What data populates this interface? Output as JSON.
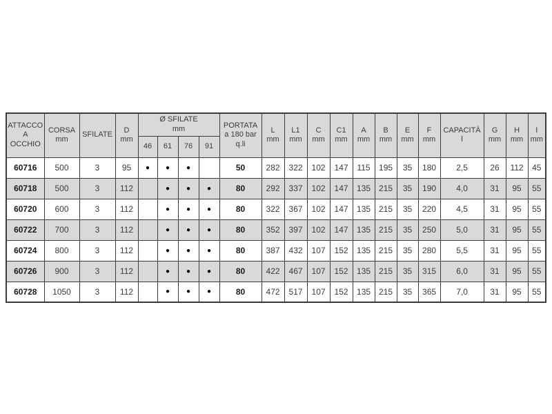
{
  "page": {
    "background": "#ffffff"
  },
  "colors": {
    "header_bg": "#d9d9d9",
    "row_bg": "#ffffff",
    "row_alt_bg": "#d9d9d9",
    "border": "#3a3a3a",
    "text": "#3a3a3a",
    "text_bold": "#1a1a1a",
    "dot": "#000000"
  },
  "table": {
    "dot_glyph": "●",
    "header": {
      "attacco": "ATTACCO\nA\nOCCHIO",
      "corsa": "CORSA\nmm",
      "sfilate": "SFILATE",
      "d": "D\nmm",
      "sfilate_group": "Ø SFILATE\nmm",
      "sfilate_sizes": [
        "46",
        "61",
        "76",
        "91"
      ],
      "portata": "PORTATA\na 180 bar\nq.li",
      "l": "L\nmm",
      "l1": "L1\nmm",
      "c": "C\nmm",
      "c1": "C1\nmm",
      "a": "A\nmm",
      "b": "B\nmm",
      "e": "E\nmm",
      "f": "F\nmm",
      "capacita": "CAPACITÀ\nl",
      "g": "G\nmm",
      "h": "H\nmm",
      "i": "I\nmm"
    },
    "rows": [
      {
        "code": "60716",
        "corsa": "500",
        "sfilate": "3",
        "d": "95",
        "dots": [
          true,
          true,
          true,
          false
        ],
        "portata": "50",
        "l": "282",
        "l1": "322",
        "c": "102",
        "c1": "147",
        "a": "115",
        "b": "195",
        "e": "35",
        "f": "180",
        "capacita": "2,5",
        "g": "26",
        "h": "112",
        "i": "45"
      },
      {
        "code": "60718",
        "corsa": "500",
        "sfilate": "3",
        "d": "112",
        "dots": [
          false,
          true,
          true,
          true
        ],
        "portata": "80",
        "l": "292",
        "l1": "337",
        "c": "102",
        "c1": "147",
        "a": "135",
        "b": "215",
        "e": "35",
        "f": "190",
        "capacita": "4,0",
        "g": "31",
        "h": "95",
        "i": "55"
      },
      {
        "code": "60720",
        "corsa": "600",
        "sfilate": "3",
        "d": "112",
        "dots": [
          false,
          true,
          true,
          true
        ],
        "portata": "80",
        "l": "322",
        "l1": "367",
        "c": "102",
        "c1": "147",
        "a": "135",
        "b": "215",
        "e": "35",
        "f": "220",
        "capacita": "4,5",
        "g": "31",
        "h": "95",
        "i": "55"
      },
      {
        "code": "60722",
        "corsa": "700",
        "sfilate": "3",
        "d": "112",
        "dots": [
          false,
          true,
          true,
          true
        ],
        "portata": "80",
        "l": "352",
        "l1": "397",
        "c": "102",
        "c1": "147",
        "a": "135",
        "b": "215",
        "e": "35",
        "f": "250",
        "capacita": "5,0",
        "g": "31",
        "h": "95",
        "i": "55"
      },
      {
        "code": "60724",
        "corsa": "800",
        "sfilate": "3",
        "d": "112",
        "dots": [
          false,
          true,
          true,
          true
        ],
        "portata": "80",
        "l": "387",
        "l1": "432",
        "c": "107",
        "c1": "152",
        "a": "135",
        "b": "215",
        "e": "35",
        "f": "280",
        "capacita": "5,5",
        "g": "31",
        "h": "95",
        "i": "55"
      },
      {
        "code": "60726",
        "corsa": "900",
        "sfilate": "3",
        "d": "112",
        "dots": [
          false,
          true,
          true,
          true
        ],
        "portata": "80",
        "l": "422",
        "l1": "467",
        "c": "107",
        "c1": "152",
        "a": "135",
        "b": "215",
        "e": "35",
        "f": "315",
        "capacita": "6,0",
        "g": "31",
        "h": "95",
        "i": "55"
      },
      {
        "code": "60728",
        "corsa": "1050",
        "sfilate": "3",
        "d": "112",
        "dots": [
          false,
          true,
          true,
          true
        ],
        "portata": "80",
        "l": "472",
        "l1": "517",
        "c": "107",
        "c1": "152",
        "a": "135",
        "b": "215",
        "e": "35",
        "f": "365",
        "capacita": "7,0",
        "g": "31",
        "h": "95",
        "i": "55"
      }
    ]
  }
}
